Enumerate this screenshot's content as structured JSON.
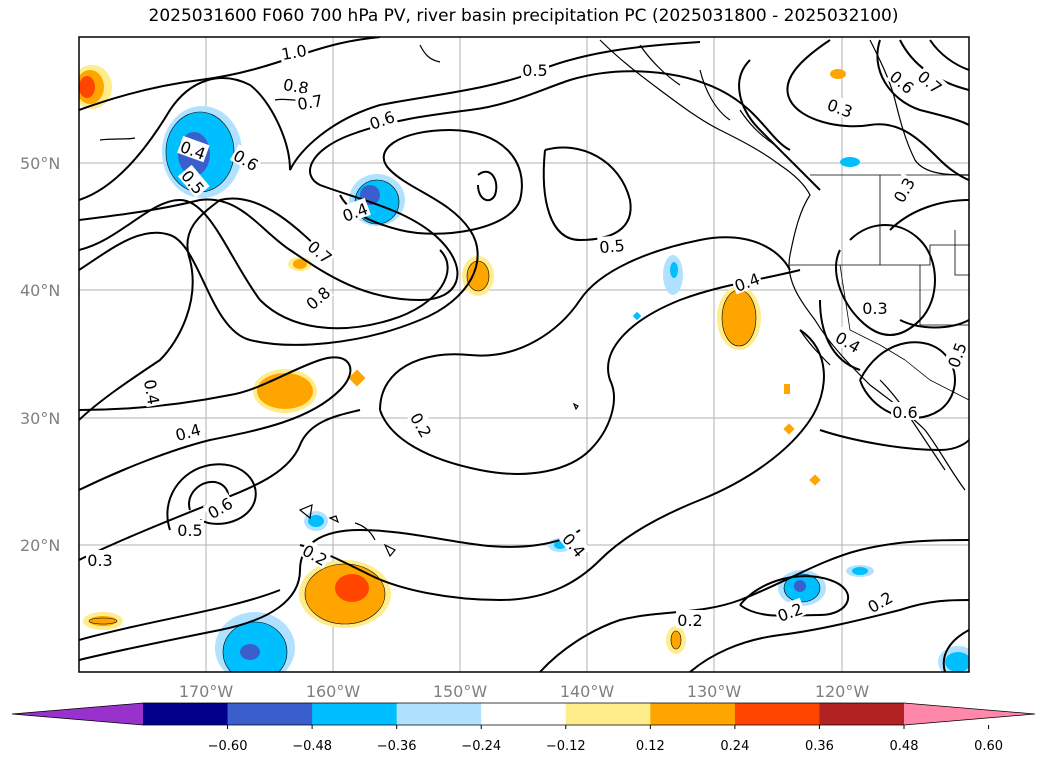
{
  "title": "2025031600 F060 700 hPa PV, river basin precipitation PC (2025031800 - 2025032100)",
  "lat_labels": [
    "50°N",
    "40°N",
    "30°N",
    "20°N"
  ],
  "lon_labels": [
    "170°W",
    "160°W",
    "150°W",
    "140°W",
    "130°W",
    "120°W"
  ],
  "colorbar": {
    "colors": [
      "#9932cc",
      "#00008b",
      "#3a5fcd",
      "#00bfff",
      "#b0e2ff",
      "#ffffff",
      "#ffec8b",
      "#ffa500",
      "#ff4500",
      "#b22222",
      "#ff88aa"
    ],
    "tick_labels": [
      "−0.60",
      "−0.48",
      "−0.36",
      "−0.24",
      "−0.12",
      "0.12",
      "0.24",
      "0.36",
      "0.48",
      "0.60"
    ]
  },
  "contour_labels": [
    "1.0",
    "0.8",
    "0.7",
    "0.5",
    "0.6",
    "0.3",
    "0.4",
    "0.6",
    "0.5",
    "0.6",
    "0.7",
    "0.4",
    "0.5",
    "0.7",
    "0.8",
    "0.4",
    "0.4",
    "0.2",
    "0.5",
    "0.6",
    "0.3",
    "0.2",
    "0.4",
    "0.2",
    "0.2",
    "0.2",
    "0.3",
    "0.4",
    "0.6",
    "0.5",
    "0.3",
    "0.4"
  ]
}
